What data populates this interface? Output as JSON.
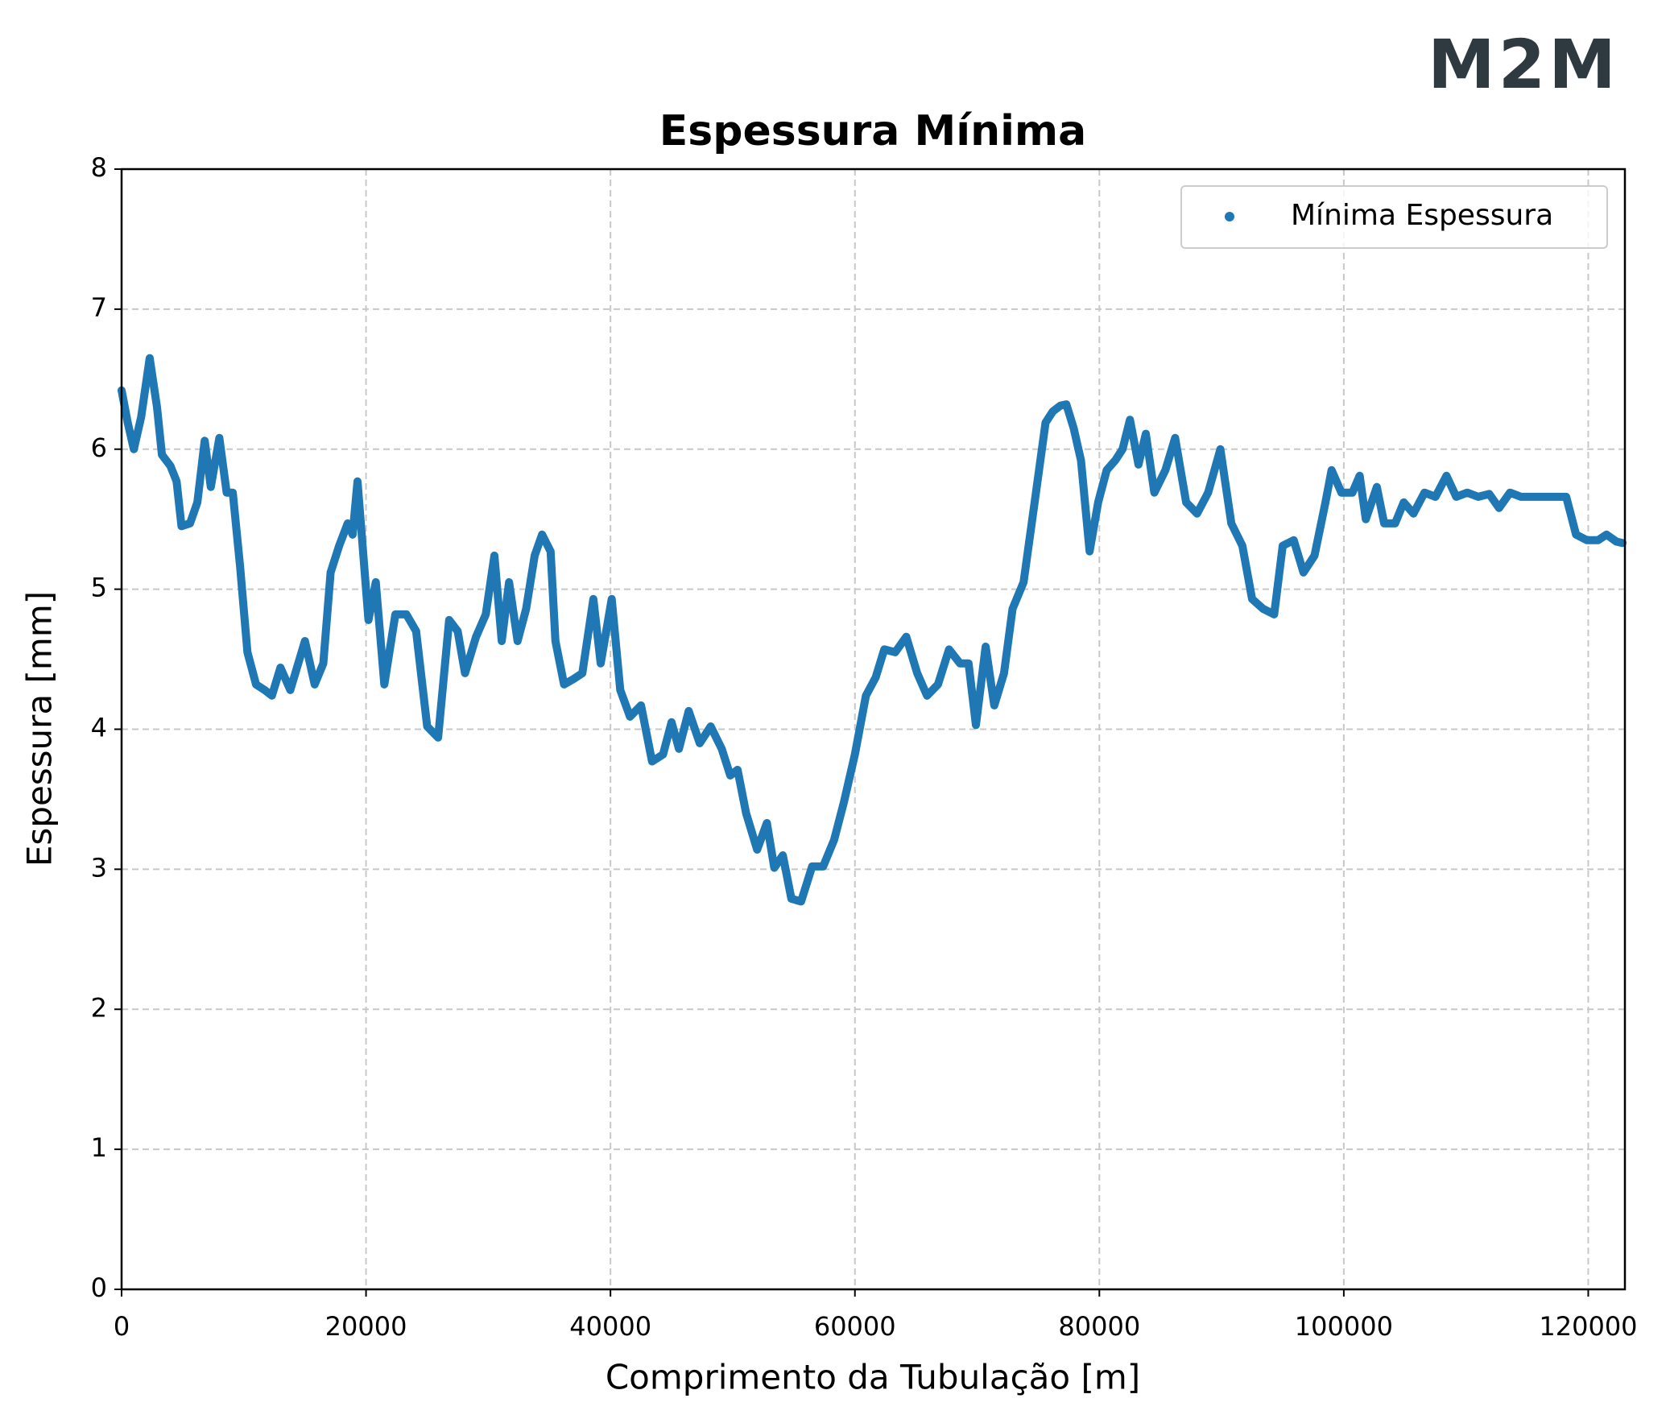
{
  "logo": "M2M",
  "chart_data": {
    "type": "scatter",
    "title": "Espessura Mínima",
    "xlabel": "Comprimento da Tubulação [m]",
    "ylabel": "Espessura [mm]",
    "xlim": [
      0,
      123000
    ],
    "ylim": [
      0,
      8
    ],
    "xticks": [
      0,
      20000,
      40000,
      60000,
      80000,
      100000,
      120000
    ],
    "yticks": [
      0,
      1,
      2,
      3,
      4,
      5,
      6,
      7,
      8
    ],
    "grid": true,
    "legend": "upper right",
    "series": [
      {
        "name": "Mínima Espessura",
        "color": "#1f77b4",
        "x": [
          0,
          500,
          1000,
          1600,
          2300,
          2900,
          3300,
          4000,
          4500,
          4900,
          5600,
          6200,
          6800,
          7300,
          8000,
          8600,
          9100,
          9700,
          10300,
          11000,
          11700,
          12300,
          13000,
          13800,
          15000,
          15800,
          16500,
          17100,
          17800,
          18500,
          18900,
          19300,
          20200,
          20800,
          21500,
          22400,
          23300,
          24100,
          25000,
          25900,
          26800,
          27500,
          28100,
          29000,
          29800,
          30500,
          31100,
          31700,
          32400,
          33100,
          33800,
          34400,
          35100,
          35500,
          36200,
          37000,
          37700,
          38600,
          39200,
          40100,
          40800,
          41600,
          42500,
          43400,
          44300,
          45000,
          45600,
          46400,
          47300,
          48200,
          49100,
          49800,
          50400,
          51100,
          52000,
          52800,
          53400,
          54100,
          54800,
          55600,
          56500,
          57400,
          58300,
          59100,
          60000,
          60900,
          61700,
          62400,
          63300,
          64200,
          65100,
          65900,
          66800,
          67700,
          68600,
          69300,
          69900,
          70700,
          71400,
          72200,
          72900,
          73800,
          74700,
          75600,
          76200,
          76800,
          77300,
          77900,
          78500,
          79200,
          79900,
          80600,
          81300,
          81900,
          82500,
          83200,
          83800,
          84500,
          85400,
          86200,
          87100,
          88000,
          88900,
          89900,
          90800,
          91700,
          92500,
          93400,
          94300,
          95000,
          95900,
          96700,
          97600,
          98500,
          99000,
          99800,
          100700,
          101300,
          101800,
          102700,
          103300,
          104200,
          104900,
          105700,
          106600,
          107500,
          108400,
          109200,
          110100,
          111000,
          111900,
          112700,
          113600,
          114500,
          115400,
          116200,
          117300,
          118200,
          119000,
          119900,
          120800,
          121500,
          122300,
          122800
        ],
        "values": [
          6.42,
          6.19,
          6.0,
          6.23,
          6.65,
          6.3,
          5.96,
          5.88,
          5.77,
          5.45,
          5.47,
          5.62,
          6.06,
          5.73,
          6.08,
          5.69,
          5.69,
          5.16,
          4.55,
          4.32,
          4.28,
          4.24,
          4.44,
          4.28,
          4.63,
          4.32,
          4.47,
          5.12,
          5.31,
          5.47,
          5.39,
          5.77,
          4.78,
          5.05,
          4.32,
          4.82,
          4.82,
          4.7,
          4.02,
          3.94,
          4.78,
          4.7,
          4.4,
          4.66,
          4.82,
          5.24,
          4.63,
          5.05,
          4.63,
          4.86,
          5.24,
          5.39,
          5.27,
          4.63,
          4.32,
          4.36,
          4.4,
          4.93,
          4.47,
          4.93,
          4.28,
          4.09,
          4.17,
          3.77,
          3.82,
          4.05,
          3.86,
          4.13,
          3.9,
          4.02,
          3.86,
          3.67,
          3.71,
          3.4,
          3.14,
          3.33,
          3.01,
          3.1,
          2.79,
          2.77,
          3.02,
          3.02,
          3.21,
          3.48,
          3.82,
          4.24,
          4.37,
          4.57,
          4.55,
          4.66,
          4.4,
          4.24,
          4.32,
          4.57,
          4.47,
          4.47,
          4.03,
          4.59,
          4.17,
          4.4,
          4.86,
          5.05,
          5.62,
          6.19,
          6.27,
          6.31,
          6.32,
          6.15,
          5.92,
          5.27,
          5.62,
          5.85,
          5.92,
          6.0,
          6.21,
          5.89,
          6.11,
          5.69,
          5.85,
          6.08,
          5.62,
          5.54,
          5.69,
          6.0,
          5.47,
          5.31,
          4.93,
          4.86,
          4.82,
          5.31,
          5.35,
          5.12,
          5.24,
          5.62,
          5.85,
          5.69,
          5.69,
          5.81,
          5.5,
          5.73,
          5.47,
          5.47,
          5.62,
          5.54,
          5.69,
          5.66,
          5.81,
          5.66,
          5.69,
          5.66,
          5.68,
          5.58,
          5.69,
          5.66,
          5.66,
          5.66,
          5.66,
          5.66,
          5.39,
          5.35,
          5.35,
          5.39,
          5.34,
          5.33
        ]
      }
    ]
  }
}
